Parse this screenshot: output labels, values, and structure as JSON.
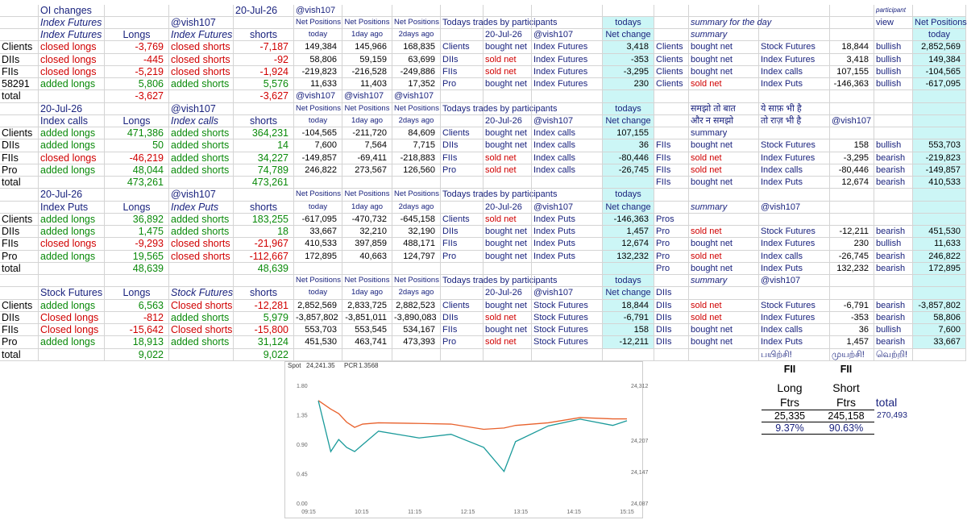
{
  "sheet": {
    "rows": [
      {
        "B": "OI changes",
        "E": "20-Jul-26",
        "F": "@vish107",
        "Q": "participant"
      },
      {
        "B": "Index Futures",
        "D": "@vish107",
        "F": "Net Positions",
        "G": "Net Positions",
        "H": "Net Positions",
        "I": "Todays trades by participants",
        "L": "todays",
        "N": "summary for the day",
        "Q": "view",
        "R": "Net Positions"
      },
      {
        "B": "Index Futures",
        "C": "Longs",
        "D": "Index Futures",
        "E": "shorts",
        "F": "today",
        "G": "1day ago",
        "H": "2days ago",
        "J": "20-Jul-26",
        "K": "@vish107",
        "L": "Net change",
        "N": "summary",
        "R": "today"
      },
      {
        "A": "Clients",
        "B": "closed longs",
        "C": "-3,769",
        "D": "closed shorts",
        "E": "-7,187",
        "F": "149,384",
        "G": "145,966",
        "H": "168,835",
        "I": "Clients",
        "J": "bought net",
        "K": "Index Futures",
        "L": "3,418",
        "M": "Clients",
        "N": "bought net",
        "O": "Stock Futures",
        "P": "18,844",
        "Q": "bullish",
        "R": "2,852,569"
      },
      {
        "A": "DIIs",
        "B": "closed longs",
        "C": "-445",
        "D": "closed shorts",
        "E": "-92",
        "F": "58,806",
        "G": "59,159",
        "H": "63,699",
        "I": "DIIs",
        "J": "sold net",
        "K": "Index Futures",
        "L": "-353",
        "M": "Clients",
        "N": "bought net",
        "O": "Index Futures",
        "P": "3,418",
        "Q": "bullish",
        "R": "149,384"
      },
      {
        "A": "FIIs",
        "B": "closed longs",
        "C": "-5,219",
        "D": "closed shorts",
        "E": "-1,924",
        "F": "-219,823",
        "G": "-216,528",
        "H": "-249,886",
        "I": "FIIs",
        "J": "sold net",
        "K": "Index Futures",
        "L": "-3,295",
        "M": "Clients",
        "N": "bought net",
        "O": "Index calls",
        "P": "107,155",
        "Q": "bullish",
        "R": "-104,565"
      },
      {
        "A": "58291",
        "B": "added longs",
        "C": "5,806",
        "D": "added shorts",
        "E": "5,576",
        "F": "11,633",
        "G": "11,403",
        "H": "17,352",
        "I": "Pro",
        "J": "bought net",
        "K": "Index Futures",
        "L": "230",
        "M": "Clients",
        "N": "sold net",
        "O": "Index Puts",
        "P": "-146,363",
        "Q": "bullish",
        "R": "-617,095"
      },
      {
        "A": "total",
        "C": "-3,627",
        "E": "-3,627",
        "F": "@vish107",
        "G": "@vish107",
        "H": "@vish107"
      },
      {
        "B": "20-Jul-26",
        "D": "@vish107",
        "F": "Net Positions",
        "G": "Net Positions",
        "H": "Net Positions",
        "I": "Todays trades by participants",
        "L": "todays",
        "N": "समझो तो बात",
        "O": "ये साफ़ भी है"
      },
      {
        "B": "Index calls",
        "C": "Longs",
        "D": "Index calls",
        "E": "shorts",
        "F": "today",
        "G": "1day ago",
        "H": "2days ago",
        "J": "20-Jul-26",
        "K": "@vish107",
        "L": "Net change",
        "N": "और न समझो",
        "O": "तो राज़ भी है",
        "P": "@vish107"
      },
      {
        "A": "Clients",
        "B": "added longs",
        "C": "471,386",
        "D": "added shorts",
        "E": "364,231",
        "F": "-104,565",
        "G": "-211,720",
        "H": "84,609",
        "I": "Clients",
        "J": "bought net",
        "K": "Index calls",
        "L": "107,155",
        "N": "summary"
      },
      {
        "A": "DIIs",
        "B": "added longs",
        "C": "50",
        "D": "added shorts",
        "E": "14",
        "F": "7,600",
        "G": "7,564",
        "H": "7,715",
        "I": "DIIs",
        "J": "bought net",
        "K": "Index calls",
        "L": "36",
        "M": "FIIs",
        "N": "bought net",
        "O": "Stock Futures",
        "P": "158",
        "Q": "bullish",
        "R": "553,703"
      },
      {
        "A": "FIIs",
        "B": "closed longs",
        "C": "-46,219",
        "D": "added shorts",
        "E": "34,227",
        "F": "-149,857",
        "G": "-69,411",
        "H": "-218,883",
        "I": "FIIs",
        "J": "sold net",
        "K": "Index calls",
        "L": "-80,446",
        "M": "FIIs",
        "N": "sold net",
        "O": "Index Futures",
        "P": "-3,295",
        "Q": "bearish",
        "R": "-219,823"
      },
      {
        "A": "Pro",
        "B": "added longs",
        "C": "48,044",
        "D": "added shorts",
        "E": "74,789",
        "F": "246,822",
        "G": "273,567",
        "H": "126,560",
        "I": "Pro",
        "J": "sold net",
        "K": "Index calls",
        "L": "-26,745",
        "M": "FIIs",
        "N": "sold net",
        "O": "Index calls",
        "P": "-80,446",
        "Q": "bearish",
        "R": "-149,857"
      },
      {
        "A": "total",
        "C": "473,261",
        "E": "473,261",
        "M": "FIIs",
        "N": "bought net",
        "O": "Index Puts",
        "P": "12,674",
        "Q": "bearish",
        "R": "410,533"
      },
      {
        "B": "20-Jul-26",
        "D": "@vish107",
        "F": "Net Positions",
        "G": "Net Positions",
        "H": "Net Positions",
        "I": "Todays trades by participants",
        "L": "todays"
      },
      {
        "B": "Index Puts",
        "C": "Longs",
        "D": "Index Puts",
        "E": "shorts",
        "F": "today",
        "G": "1day ago",
        "H": "2days ago",
        "J": "20-Jul-26",
        "K": "@vish107",
        "L": "Net change",
        "N": "summary",
        "O": "@vish107"
      },
      {
        "A": "Clients",
        "B": "added longs",
        "C": "36,892",
        "D": "added shorts",
        "E": "183,255",
        "F": "-617,095",
        "G": "-470,732",
        "H": "-645,158",
        "I": "Clients",
        "J": "sold net",
        "K": "Index Puts",
        "L": "-146,363",
        "M": "Pros"
      },
      {
        "A": "DIIs",
        "B": "added longs",
        "C": "1,475",
        "D": "added shorts",
        "E": "18",
        "F": "33,667",
        "G": "32,210",
        "H": "32,190",
        "I": "DIIs",
        "J": "bought net",
        "K": "Index Puts",
        "L": "1,457",
        "M": "Pro",
        "N": "sold net",
        "O": "Stock Futures",
        "P": "-12,211",
        "Q": "bearish",
        "R": "451,530"
      },
      {
        "A": "FIIs",
        "B": "closed longs",
        "C": "-9,293",
        "D": "closed shorts",
        "E": "-21,967",
        "F": "410,533",
        "G": "397,859",
        "H": "488,171",
        "I": "FIIs",
        "J": "bought net",
        "K": "Index Puts",
        "L": "12,674",
        "M": "Pro",
        "N": "bought net",
        "O": "Index Futures",
        "P": "230",
        "Q": "bullish",
        "R": "11,633"
      },
      {
        "A": "Pro",
        "B": "added longs",
        "C": "19,565",
        "D": "closed shorts",
        "E": "-112,667",
        "F": "172,895",
        "G": "40,663",
        "H": "124,797",
        "I": "Pro",
        "J": "bought net",
        "K": "Index Puts",
        "L": "132,232",
        "M": "Pro",
        "N": "sold net",
        "O": "Index calls",
        "P": "-26,745",
        "Q": "bearish",
        "R": "246,822"
      },
      {
        "A": "total",
        "C": "48,639",
        "E": "48,639",
        "M": "Pro",
        "N": "bought net",
        "O": "Index Puts",
        "P": "132,232",
        "Q": "bearish",
        "R": "172,895"
      },
      {
        "F": "Net Positions",
        "G": "Net Positions",
        "H": "Net Positions",
        "I": "Todays trades by participants",
        "L": "todays",
        "N": "summary",
        "O": "@vish107"
      },
      {
        "B": "Stock Futures",
        "C": "Longs",
        "D": "Stock Futures",
        "E": "shorts",
        "F": "today",
        "G": "1day ago",
        "H": "2days ago",
        "J": "20-Jul-26",
        "K": "@vish107",
        "L": "Net change",
        "M": "DIIs"
      },
      {
        "A": "Clients",
        "B": "added longs",
        "C": "6,563",
        "D": "Closed shorts",
        "E": "-12,281",
        "F": "2,852,569",
        "G": "2,833,725",
        "H": "2,882,523",
        "I": "Clients",
        "J": "bought net",
        "K": "Stock Futures",
        "L": "18,844",
        "M": "DIIs",
        "N": "sold net",
        "O": "Stock Futures",
        "P": "-6,791",
        "Q": "bearish",
        "R": "-3,857,802"
      },
      {
        "A": "DIIs",
        "B": "Closed longs",
        "C": "-812",
        "D": "added shorts",
        "E": "5,979",
        "F": "-3,857,802",
        "G": "-3,851,011",
        "H": "-3,890,083",
        "I": "DIIs",
        "J": "sold net",
        "K": "Stock Futures",
        "L": "-6,791",
        "M": "DIIs",
        "N": "sold net",
        "O": "Index Futures",
        "P": "-353",
        "Q": "bearish",
        "R": "58,806"
      },
      {
        "A": "FIIs",
        "B": "Closed longs",
        "C": "-15,642",
        "D": "Closed shorts",
        "E": "-15,800",
        "F": "553,703",
        "G": "553,545",
        "H": "534,167",
        "I": "FIIs",
        "J": "bought net",
        "K": "Stock Futures",
        "L": "158",
        "M": "DIIs",
        "N": "bought net",
        "O": "Index calls",
        "P": "36",
        "Q": "bullish",
        "R": "7,600"
      },
      {
        "A": "Pro",
        "B": "added longs",
        "C": "18,913",
        "D": "added shorts",
        "E": "31,124",
        "F": "451,530",
        "G": "463,741",
        "H": "473,393",
        "I": "Pro",
        "J": "sold net",
        "K": "Stock Futures",
        "L": "-12,211",
        "M": "DIIs",
        "N": "bought net",
        "O": "Index Puts",
        "P": "1,457",
        "Q": "bearish",
        "R": "33,667"
      },
      {
        "A": "total",
        "C": "9,022",
        "E": "9,022",
        "O": "பயிற்சி!",
        "P": "முயற்சி!",
        "Q": "வெற்றி!"
      }
    ]
  },
  "fii_box": {
    "head": [
      "FII",
      "FII"
    ],
    "kind": [
      "Long",
      "Short"
    ],
    "unit": [
      "Ftrs",
      "Ftrs"
    ],
    "total_label": "total",
    "values": [
      "25,335",
      "245,158"
    ],
    "total": "270,493",
    "shares": [
      "9.37%",
      "90.63%"
    ]
  },
  "chart": {
    "spot_label": "Spot",
    "spot": "24,241.35",
    "pcr_label": "PCR",
    "pcr": "1.3568",
    "xlim": [
      "09:15",
      "15:15"
    ],
    "xticks": [
      "09:15",
      "10:15",
      "11:15",
      "12:15",
      "13:15",
      "14:15",
      "15:15"
    ],
    "ylim": [
      0,
      1.8
    ],
    "yticks": [
      {
        "value": 0,
        "label": "0.00"
      },
      {
        "value": 0.45,
        "label": "0.45"
      },
      {
        "value": 0.9,
        "label": "0.90"
      },
      {
        "value": 1.35,
        "label": "1.35"
      },
      {
        "value": 1.8,
        "label": "1.80"
      }
    ],
    "y2lim": [
      24087,
      24312
    ],
    "y2ticks": [
      {
        "value": 24087,
        "label": "24,087"
      },
      {
        "value": 24147,
        "label": "24,147"
      },
      {
        "value": 24207,
        "label": "24,207"
      },
      {
        "value": 24312,
        "label": "24,312"
      }
    ],
    "x": [
      "09:26",
      "09:40",
      "09:49",
      "09:58",
      "10:07",
      "10:16",
      "10:34",
      "11:20",
      "11:56",
      "12:33",
      "12:56",
      "13:09",
      "13:46",
      "14:22",
      "14:59",
      "15:15"
    ],
    "series": [
      {
        "color": "#e8612c",
        "values": [
          1.58,
          1.45,
          1.38,
          1.25,
          1.17,
          1.22,
          1.24,
          1.23,
          1.22,
          1.14,
          1.16,
          1.2,
          1.24,
          1.32,
          1.3,
          1.3
        ]
      },
      {
        "color": "#1a9a9a",
        "axis": "y2",
        "values": [
          24284,
          24187,
          24210,
          24195,
          24187,
          24200,
          24226,
          24213,
          24220,
          24195,
          24149,
          24206,
          24236,
          24249,
          24237,
          24246
        ]
      }
    ]
  }
}
